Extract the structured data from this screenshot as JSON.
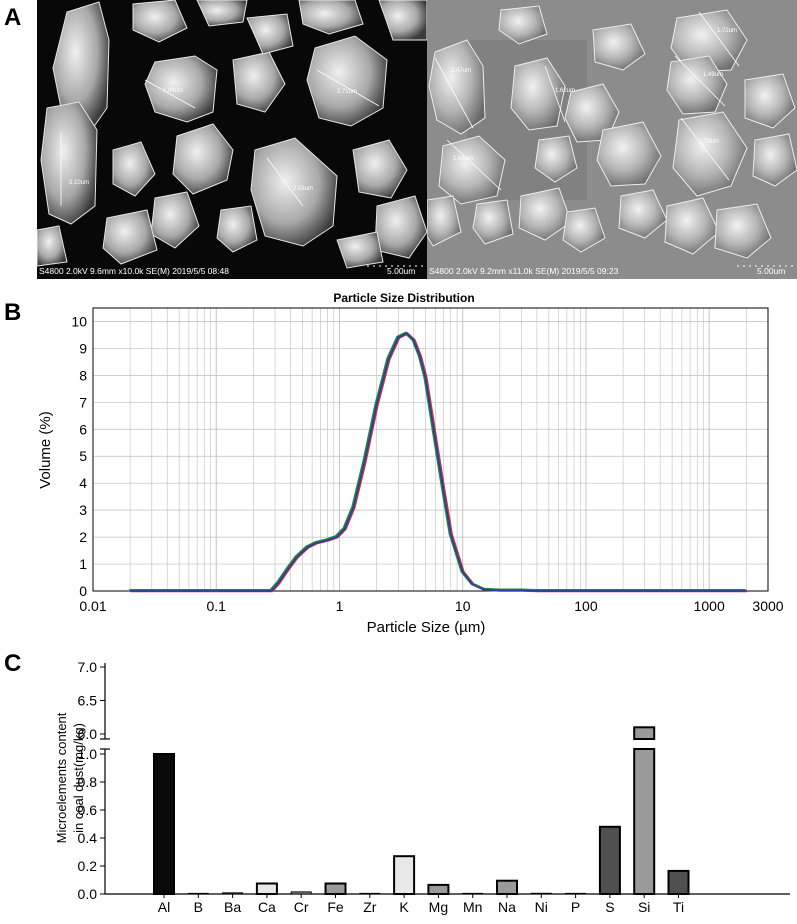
{
  "panels": {
    "a": "A",
    "b": "B",
    "c": "C"
  },
  "sem": {
    "left": {
      "footer_left": "S4800 2.0kV 9.6mm x10.0k SE(M) 2019/5/5 08:48",
      "scale": "5.00um",
      "measurements": [
        "1.94um",
        "2.71um",
        "3.10um",
        "2.03um"
      ]
    },
    "right": {
      "footer_left": "S4800 2.0kV 9.2mm x11.0k SE(M) 2019/5/5 09:23",
      "scale": "5.00um",
      "measurements": [
        "1.47um",
        "1.62um",
        "1.72um",
        "1.49um",
        "1.58um",
        "1.79um"
      ]
    }
  },
  "colors": {
    "line_blue": "#2d3e9e",
    "line_green": "#1e8a3a",
    "line_red": "#d0313a",
    "grid": "#bfbfbf",
    "bar_black": "#0a0a0a",
    "bar_light": "#e8e8e8",
    "bar_mid": "#9a9a9a",
    "bar_dark": "#505050"
  },
  "chart_data": [
    {
      "type": "line",
      "title": "Particle Size Distribution",
      "xlabel": "Particle Size (µm)",
      "ylabel": "Volume (%)",
      "x_scale": "log",
      "xlim": [
        0.01,
        3000
      ],
      "ylim": [
        0,
        10.5
      ],
      "x_ticks": [
        0.01,
        0.1,
        1,
        10,
        100,
        1000,
        3000
      ],
      "x_tick_labels": [
        "0.01",
        "0.1",
        "1",
        "10",
        "100",
        "1000",
        "3000"
      ],
      "y_ticks": [
        0,
        1,
        2,
        3,
        4,
        5,
        6,
        7,
        8,
        9,
        10
      ],
      "y_tick_labels": [
        "0",
        "1",
        "2",
        "3",
        "4",
        "5",
        "6",
        "7",
        "8",
        "9",
        "10"
      ],
      "grid": true,
      "series": [
        {
          "x": [
            0.02,
            0.1,
            0.2,
            0.28,
            0.32,
            0.38,
            0.45,
            0.55,
            0.65,
            0.8,
            0.95,
            1.1,
            1.3,
            1.6,
            2.0,
            2.5,
            3.0,
            3.5,
            4.0,
            4.5,
            5.0,
            6.0,
            7.0,
            8.0,
            10.0,
            12.0,
            15.0,
            20.0,
            30.0,
            40.0,
            100.0,
            1000.0,
            2000.0
          ],
          "y": [
            0,
            0,
            0,
            0,
            0.3,
            0.8,
            1.25,
            1.62,
            1.78,
            1.88,
            2.0,
            2.3,
            3.1,
            4.8,
            6.9,
            8.6,
            9.4,
            9.55,
            9.3,
            8.7,
            7.9,
            5.6,
            3.7,
            2.1,
            0.7,
            0.25,
            0.05,
            0.02,
            0.02,
            0,
            0,
            0,
            0
          ]
        }
      ]
    },
    {
      "type": "bar",
      "ylabel": "Microelements content in coal dust(mg/kg)",
      "ylabel_lines": [
        "Microelements content",
        "in coal dust(mg/kg)"
      ],
      "categories": [
        "Al",
        "B",
        "Ba",
        "Ca",
        "Cr",
        "Fe",
        "Zr",
        "K",
        "Mg",
        "Mn",
        "Na",
        "Ni",
        "P",
        "S",
        "Si",
        "Ti"
      ],
      "values": [
        1.0,
        0.003,
        0.008,
        0.075,
        0.015,
        0.075,
        0.002,
        0.27,
        0.065,
        0.003,
        0.095,
        0.005,
        0.0,
        0.48,
        6.1,
        0.165
      ],
      "y_broken_axis": true,
      "ylim_lower": [
        0,
        1.0
      ],
      "ylim_upper": [
        6.0,
        7.0
      ],
      "y_ticks_lower": [
        "0.0",
        "0.2",
        "0.4",
        "0.6",
        "0.8",
        "1.0"
      ],
      "y_ticks_upper": [
        "6.0",
        "6.5",
        "7.0"
      ],
      "bar_shades": [
        "black",
        "mid",
        "mid",
        "light",
        "mid",
        "mid",
        "mid",
        "light",
        "mid",
        "mid",
        "mid",
        "mid",
        "mid",
        "dark",
        "mid",
        "dark"
      ]
    }
  ]
}
